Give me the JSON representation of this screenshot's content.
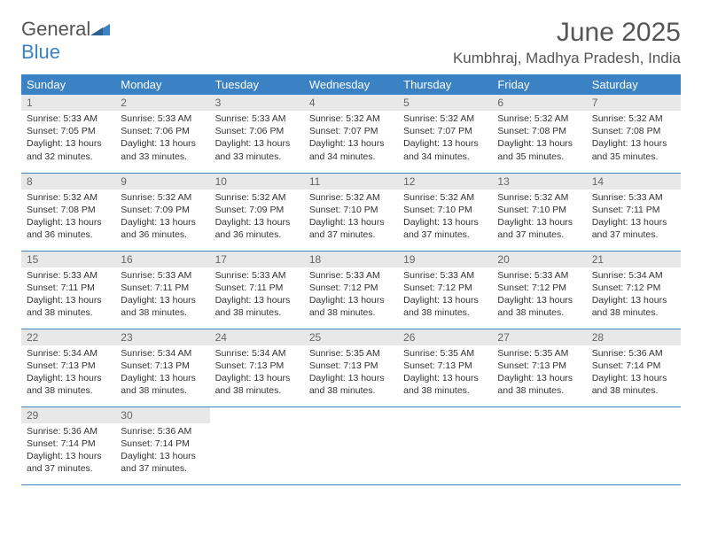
{
  "brand": {
    "name_gray": "General",
    "name_blue": "Blue"
  },
  "title": "June 2025",
  "location": "Kumbhraj, Madhya Pradesh, India",
  "colors": {
    "header_bg": "#3b82c4",
    "header_text": "#ffffff",
    "daynum_bg": "#e8e8e8",
    "border": "#3b82c4",
    "body_text": "#333333",
    "title_text": "#555555"
  },
  "weekdays": [
    "Sunday",
    "Monday",
    "Tuesday",
    "Wednesday",
    "Thursday",
    "Friday",
    "Saturday"
  ],
  "days": [
    {
      "n": "1",
      "sunrise": "Sunrise: 5:33 AM",
      "sunset": "Sunset: 7:05 PM",
      "daylight": "Daylight: 13 hours and 32 minutes."
    },
    {
      "n": "2",
      "sunrise": "Sunrise: 5:33 AM",
      "sunset": "Sunset: 7:06 PM",
      "daylight": "Daylight: 13 hours and 33 minutes."
    },
    {
      "n": "3",
      "sunrise": "Sunrise: 5:33 AM",
      "sunset": "Sunset: 7:06 PM",
      "daylight": "Daylight: 13 hours and 33 minutes."
    },
    {
      "n": "4",
      "sunrise": "Sunrise: 5:32 AM",
      "sunset": "Sunset: 7:07 PM",
      "daylight": "Daylight: 13 hours and 34 minutes."
    },
    {
      "n": "5",
      "sunrise": "Sunrise: 5:32 AM",
      "sunset": "Sunset: 7:07 PM",
      "daylight": "Daylight: 13 hours and 34 minutes."
    },
    {
      "n": "6",
      "sunrise": "Sunrise: 5:32 AM",
      "sunset": "Sunset: 7:08 PM",
      "daylight": "Daylight: 13 hours and 35 minutes."
    },
    {
      "n": "7",
      "sunrise": "Sunrise: 5:32 AM",
      "sunset": "Sunset: 7:08 PM",
      "daylight": "Daylight: 13 hours and 35 minutes."
    },
    {
      "n": "8",
      "sunrise": "Sunrise: 5:32 AM",
      "sunset": "Sunset: 7:08 PM",
      "daylight": "Daylight: 13 hours and 36 minutes."
    },
    {
      "n": "9",
      "sunrise": "Sunrise: 5:32 AM",
      "sunset": "Sunset: 7:09 PM",
      "daylight": "Daylight: 13 hours and 36 minutes."
    },
    {
      "n": "10",
      "sunrise": "Sunrise: 5:32 AM",
      "sunset": "Sunset: 7:09 PM",
      "daylight": "Daylight: 13 hours and 36 minutes."
    },
    {
      "n": "11",
      "sunrise": "Sunrise: 5:32 AM",
      "sunset": "Sunset: 7:10 PM",
      "daylight": "Daylight: 13 hours and 37 minutes."
    },
    {
      "n": "12",
      "sunrise": "Sunrise: 5:32 AM",
      "sunset": "Sunset: 7:10 PM",
      "daylight": "Daylight: 13 hours and 37 minutes."
    },
    {
      "n": "13",
      "sunrise": "Sunrise: 5:32 AM",
      "sunset": "Sunset: 7:10 PM",
      "daylight": "Daylight: 13 hours and 37 minutes."
    },
    {
      "n": "14",
      "sunrise": "Sunrise: 5:33 AM",
      "sunset": "Sunset: 7:11 PM",
      "daylight": "Daylight: 13 hours and 37 minutes."
    },
    {
      "n": "15",
      "sunrise": "Sunrise: 5:33 AM",
      "sunset": "Sunset: 7:11 PM",
      "daylight": "Daylight: 13 hours and 38 minutes."
    },
    {
      "n": "16",
      "sunrise": "Sunrise: 5:33 AM",
      "sunset": "Sunset: 7:11 PM",
      "daylight": "Daylight: 13 hours and 38 minutes."
    },
    {
      "n": "17",
      "sunrise": "Sunrise: 5:33 AM",
      "sunset": "Sunset: 7:11 PM",
      "daylight": "Daylight: 13 hours and 38 minutes."
    },
    {
      "n": "18",
      "sunrise": "Sunrise: 5:33 AM",
      "sunset": "Sunset: 7:12 PM",
      "daylight": "Daylight: 13 hours and 38 minutes."
    },
    {
      "n": "19",
      "sunrise": "Sunrise: 5:33 AM",
      "sunset": "Sunset: 7:12 PM",
      "daylight": "Daylight: 13 hours and 38 minutes."
    },
    {
      "n": "20",
      "sunrise": "Sunrise: 5:33 AM",
      "sunset": "Sunset: 7:12 PM",
      "daylight": "Daylight: 13 hours and 38 minutes."
    },
    {
      "n": "21",
      "sunrise": "Sunrise: 5:34 AM",
      "sunset": "Sunset: 7:12 PM",
      "daylight": "Daylight: 13 hours and 38 minutes."
    },
    {
      "n": "22",
      "sunrise": "Sunrise: 5:34 AM",
      "sunset": "Sunset: 7:13 PM",
      "daylight": "Daylight: 13 hours and 38 minutes."
    },
    {
      "n": "23",
      "sunrise": "Sunrise: 5:34 AM",
      "sunset": "Sunset: 7:13 PM",
      "daylight": "Daylight: 13 hours and 38 minutes."
    },
    {
      "n": "24",
      "sunrise": "Sunrise: 5:34 AM",
      "sunset": "Sunset: 7:13 PM",
      "daylight": "Daylight: 13 hours and 38 minutes."
    },
    {
      "n": "25",
      "sunrise": "Sunrise: 5:35 AM",
      "sunset": "Sunset: 7:13 PM",
      "daylight": "Daylight: 13 hours and 38 minutes."
    },
    {
      "n": "26",
      "sunrise": "Sunrise: 5:35 AM",
      "sunset": "Sunset: 7:13 PM",
      "daylight": "Daylight: 13 hours and 38 minutes."
    },
    {
      "n": "27",
      "sunrise": "Sunrise: 5:35 AM",
      "sunset": "Sunset: 7:13 PM",
      "daylight": "Daylight: 13 hours and 38 minutes."
    },
    {
      "n": "28",
      "sunrise": "Sunrise: 5:36 AM",
      "sunset": "Sunset: 7:14 PM",
      "daylight": "Daylight: 13 hours and 38 minutes."
    },
    {
      "n": "29",
      "sunrise": "Sunrise: 5:36 AM",
      "sunset": "Sunset: 7:14 PM",
      "daylight": "Daylight: 13 hours and 37 minutes."
    },
    {
      "n": "30",
      "sunrise": "Sunrise: 5:36 AM",
      "sunset": "Sunset: 7:14 PM",
      "daylight": "Daylight: 13 hours and 37 minutes."
    }
  ]
}
